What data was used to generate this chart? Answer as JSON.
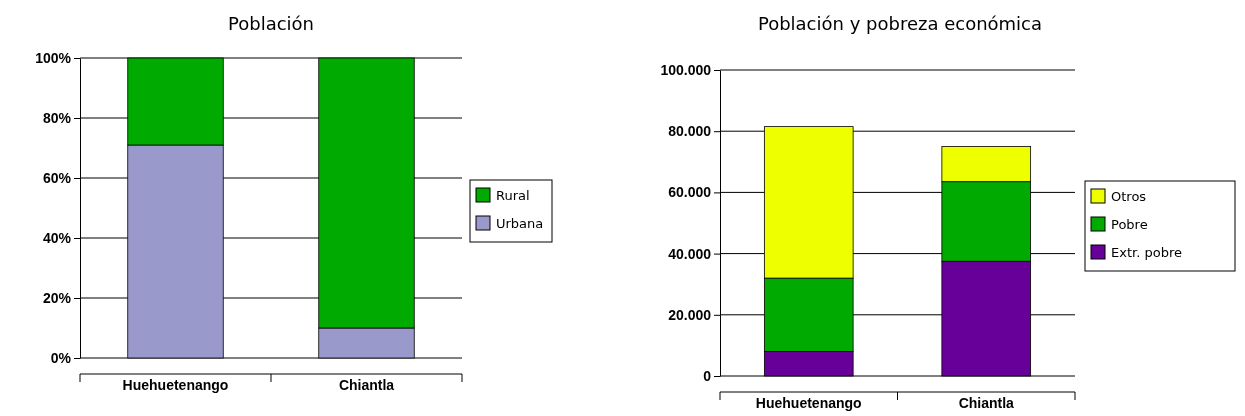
{
  "chart_data": [
    {
      "type": "bar",
      "title": "Población",
      "categories": [
        "Huehuetenango",
        "Chiantla"
      ],
      "stacked": true,
      "series": [
        {
          "name": "Urbana",
          "color": "#9999cc",
          "values": [
            71,
            10
          ]
        },
        {
          "name": "Rural",
          "color": "#00aa00",
          "values": [
            29,
            90
          ]
        }
      ],
      "ylim": [
        0,
        100
      ],
      "yticks": [
        {
          "value": 0,
          "label": "0%"
        },
        {
          "value": 20,
          "label": "20%"
        },
        {
          "value": 40,
          "label": "40%"
        },
        {
          "value": 60,
          "label": "60%"
        },
        {
          "value": 80,
          "label": "80%"
        },
        {
          "value": 100,
          "label": "100%"
        }
      ],
      "grid": "y",
      "legend": "right"
    },
    {
      "type": "bar",
      "title": "Población y pobreza económica",
      "categories": [
        "Huehuetenango",
        "Chiantla"
      ],
      "stacked": true,
      "series": [
        {
          "name": "Extr. pobre",
          "color": "#660099",
          "values": [
            8000,
            37500
          ]
        },
        {
          "name": "Pobre",
          "color": "#00aa00",
          "values": [
            24000,
            26000
          ]
        },
        {
          "name": "Otros",
          "color": "#eeff00",
          "values": [
            49500,
            11500
          ]
        }
      ],
      "ylim": [
        0,
        100000
      ],
      "yticks": [
        {
          "value": 0,
          "label": "0"
        },
        {
          "value": 20000,
          "label": "20.000"
        },
        {
          "value": 40000,
          "label": "40.000"
        },
        {
          "value": 60000,
          "label": "60.000"
        },
        {
          "value": 80000,
          "label": "80.000"
        },
        {
          "value": 100000,
          "label": "100.000"
        }
      ],
      "grid": "y",
      "legend": "right"
    }
  ]
}
